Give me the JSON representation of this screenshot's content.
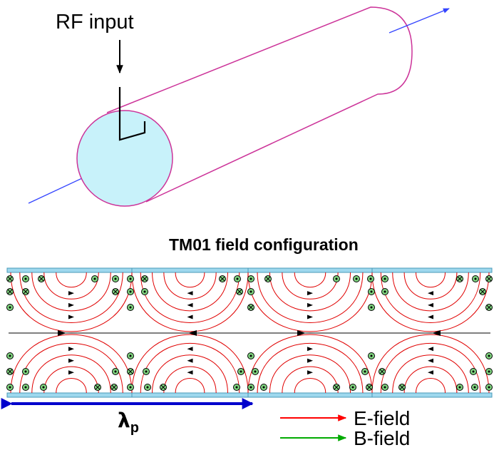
{
  "top_diagram": {
    "rf_input_label": "RF input"
  },
  "field_diagram": {
    "title": "TM01 field configuration",
    "wavelength_symbol": "λ",
    "wavelength_subscript": "p",
    "legend": [
      {
        "label": "E-field",
        "color": "#ff0000"
      },
      {
        "label": "B-field",
        "color": "#00aa00"
      }
    ]
  },
  "colors": {
    "cylinder_outline": "#cc3399",
    "cylinder_face": "#c8f2fa",
    "beam_axis": "#3344ff",
    "wall": "#9ed8ee",
    "e_field": "#e00000",
    "b_marker_fill": "#7fd47f",
    "wavelength_arrow": "#0000cc"
  }
}
